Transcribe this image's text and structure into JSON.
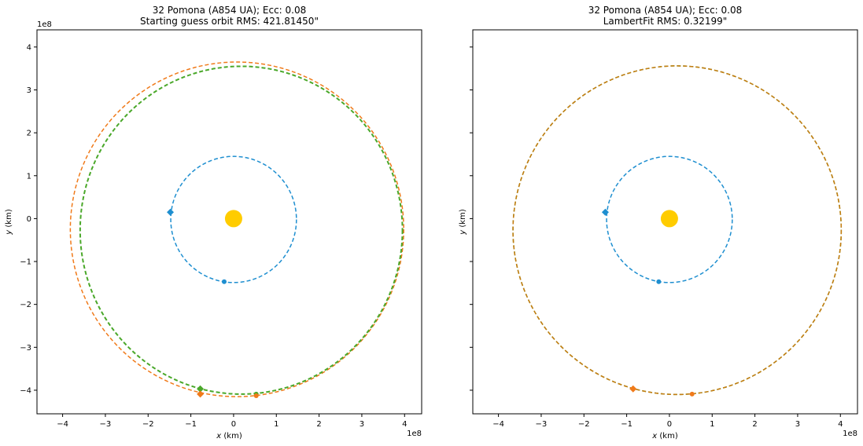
{
  "chart_data": [
    {
      "type": "line",
      "title_line1": "32 Pomona (A854 UA); Ecc: 0.08",
      "title_line2": "Starting guess orbit RMS: 421.81450\"",
      "xlabel_var": "x",
      "xlabel_unit": " (km)",
      "ylabel_var": "y",
      "ylabel_unit": " (km)",
      "x_offset_label": "1e8",
      "y_offset_label": "1e8",
      "xlim": [
        -4.6,
        4.4
      ],
      "ylim": [
        -4.55,
        4.4
      ],
      "xticks": [
        -4,
        -3,
        -2,
        -1,
        0,
        1,
        2,
        3,
        4
      ],
      "yticks": [
        -4,
        -3,
        -2,
        -1,
        0,
        1,
        2,
        3,
        4
      ],
      "xtick_labels": [
        "−4",
        "−3",
        "−2",
        "−1",
        "0",
        "1",
        "2",
        "3",
        "4"
      ],
      "ytick_labels": [
        "−4",
        "−3",
        "−2",
        "−1",
        "0",
        "1",
        "2",
        "3",
        "4"
      ],
      "show_yticklabels": true,
      "sun": {
        "x": 0,
        "y": 0,
        "color": "#ffcc00"
      },
      "orbits": [
        {
          "label": "earth",
          "color": "#1f8fd0",
          "cx": 0.0,
          "cy": -0.02,
          "rx": 1.47,
          "ry": 1.47,
          "width": 1.5
        },
        {
          "label": "guess",
          "color": "#f07a1a",
          "cx": 0.08,
          "cy": -0.25,
          "rx": 3.9,
          "ry": 3.9,
          "width": 1.5
        },
        {
          "label": "fit",
          "color": "#4aa82a",
          "cx": 0.18,
          "cy": -0.27,
          "rx": 3.77,
          "ry": 3.82,
          "width": 2
        }
      ],
      "markers": [
        {
          "shape": "diamond",
          "x": -1.48,
          "y": 0.15,
          "color": "#1f8fd0"
        },
        {
          "shape": "circle",
          "x": -0.22,
          "y": -1.47,
          "color": "#1f8fd0"
        },
        {
          "shape": "diamond",
          "x": -0.78,
          "y": -3.97,
          "color": "#4aa82a"
        },
        {
          "shape": "circle",
          "x": 0.53,
          "y": -4.09,
          "color": "#4aa82a"
        },
        {
          "shape": "diamond",
          "x": -0.78,
          "y": -4.09,
          "color": "#f07a1a"
        },
        {
          "shape": "circle",
          "x": 0.53,
          "y": -4.13,
          "color": "#f07a1a"
        }
      ]
    },
    {
      "type": "line",
      "title_line1": "32 Pomona (A854 UA); Ecc: 0.08",
      "title_line2": "LambertFit RMS: 0.32199\"",
      "xlabel_var": "x",
      "xlabel_unit": " (km)",
      "ylabel_var": "y",
      "ylabel_unit": " (km)",
      "x_offset_label": "1e8",
      "y_offset_label": "",
      "xlim": [
        -4.6,
        4.4
      ],
      "ylim": [
        -4.55,
        4.4
      ],
      "xticks": [
        -4,
        -3,
        -2,
        -1,
        0,
        1,
        2,
        3,
        4
      ],
      "yticks": [
        -4,
        -3,
        -2,
        -1,
        0,
        1,
        2,
        3,
        4
      ],
      "xtick_labels": [
        "−4",
        "−3",
        "−2",
        "−1",
        "0",
        "1",
        "2",
        "3",
        "4"
      ],
      "ytick_labels": [],
      "show_yticklabels": false,
      "sun": {
        "x": 0,
        "y": 0,
        "color": "#ffcc00"
      },
      "orbits": [
        {
          "label": "earth",
          "color": "#1f8fd0",
          "cx": 0.0,
          "cy": -0.02,
          "rx": 1.47,
          "ry": 1.47,
          "width": 1.5
        },
        {
          "label": "fit",
          "color": "#4aa82a",
          "cx": 0.18,
          "cy": -0.27,
          "rx": 3.84,
          "ry": 3.83,
          "width": 1.5
        },
        {
          "label": "guess",
          "color": "#c87a10",
          "cx": 0.18,
          "cy": -0.27,
          "rx": 3.84,
          "ry": 3.83,
          "width": 1.5
        }
      ],
      "markers": [
        {
          "shape": "diamond",
          "x": -1.5,
          "y": 0.15,
          "color": "#1f8fd0"
        },
        {
          "shape": "circle",
          "x": -0.25,
          "y": -1.47,
          "color": "#1f8fd0"
        },
        {
          "shape": "diamond",
          "x": -0.85,
          "y": -3.97,
          "color": "#f07a1a"
        },
        {
          "shape": "circle",
          "x": 0.53,
          "y": -4.09,
          "color": "#f07a1a"
        }
      ]
    }
  ]
}
